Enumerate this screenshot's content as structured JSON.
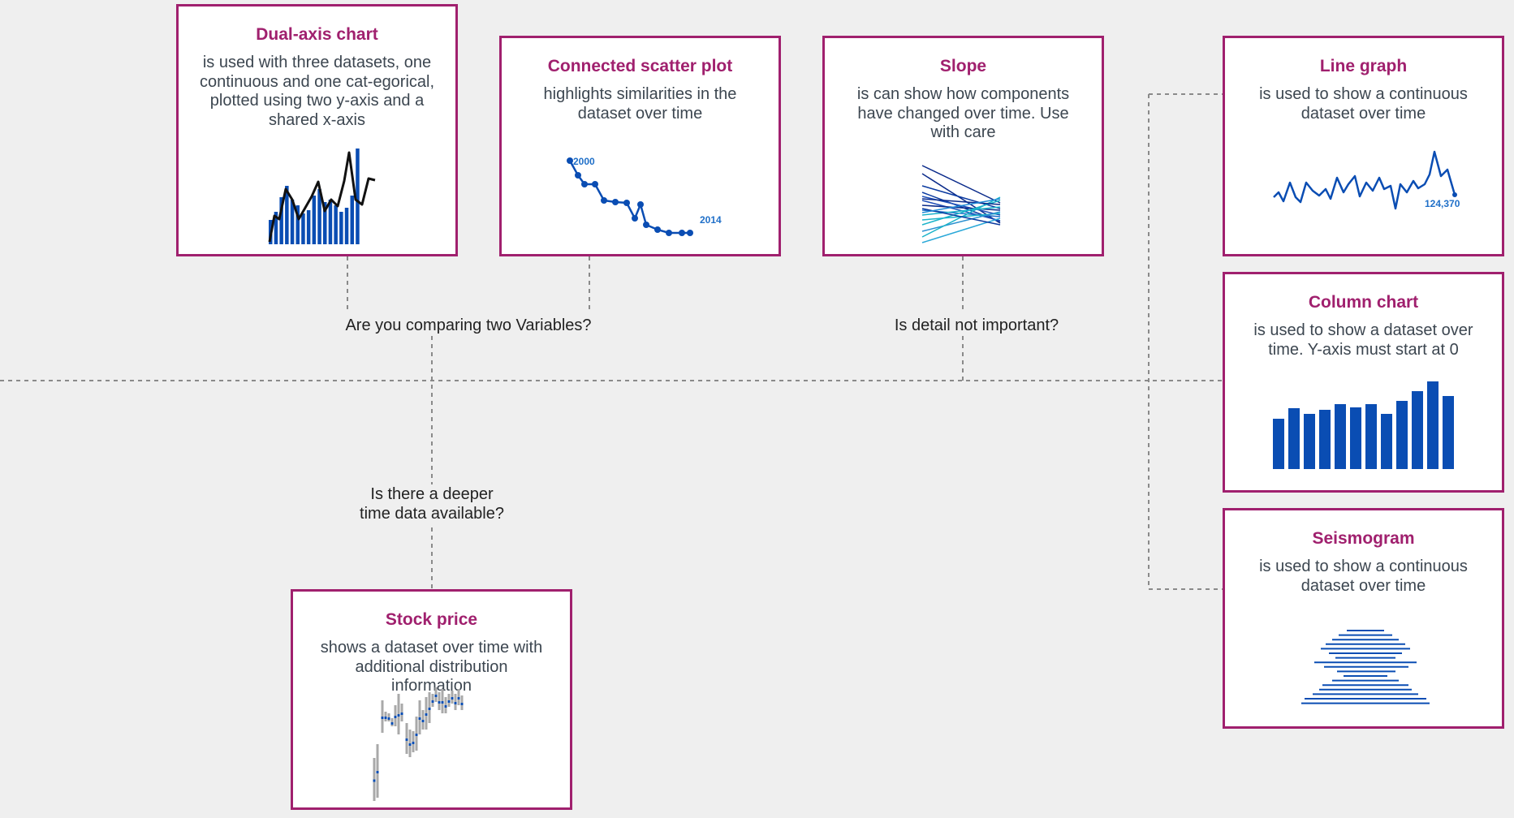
{
  "colors": {
    "background": "#efefef",
    "card_border": "#a0206e",
    "title": "#a0206e",
    "text": "#3c4650",
    "connector": "#888888",
    "chart_blue": "#0a4db3",
    "chart_light_blue": "#1f8ad6",
    "chart_teal": "#1ab3c9",
    "chart_black": "#111111",
    "stock_gray": "#a9a9a9"
  },
  "questions": {
    "compare_two_variables": "Are you comparing two Variables?",
    "detail_not_important": "Is detail not important?",
    "deeper_time_data": "Is there a deeper\ntime data available?"
  },
  "cards": {
    "dual_axis": {
      "title": "Dual-axis chart",
      "description": "is used with three datasets, one continuous and one cat-egorical, plotted using two y-axis and a shared x-axis",
      "icon": "dual-axis-bar-line-icon"
    },
    "connected_scatter": {
      "title": "Connected scatter plot",
      "description": "highlights similarities in the dataset over time",
      "start_label": "2000",
      "end_label": "2014",
      "icon": "connected-scatter-icon"
    },
    "slope": {
      "title": "Slope",
      "description": "is can show how components have changed over time. Use with care",
      "icon": "slope-lines-icon"
    },
    "line_graph": {
      "title": "Line graph",
      "description": "is used to show a continuous   dataset over time",
      "end_label": "124,370",
      "icon": "line-graph-icon"
    },
    "column_chart": {
      "title": "Column chart",
      "description": "is used to show a dataset over time. Y-axis must start at 0",
      "icon": "column-chart-icon"
    },
    "seismogram": {
      "title": "Seismogram",
      "description": "is used to show a continuous   dataset over time",
      "icon": "seismogram-icon"
    },
    "stock_price": {
      "title": "Stock price",
      "description": "shows a dataset over time with additional distribution information",
      "icon": "stock-candlestick-icon"
    }
  }
}
